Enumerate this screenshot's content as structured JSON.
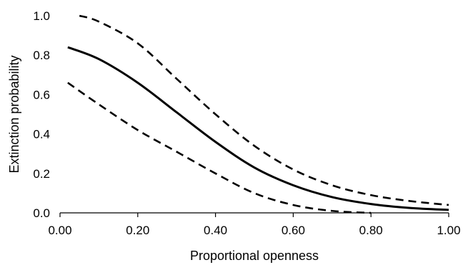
{
  "chart_data": {
    "type": "line",
    "title": "",
    "xlabel": "Proportional openness",
    "ylabel": "Extinction probability",
    "xlim": [
      0,
      1
    ],
    "ylim": [
      0,
      1
    ],
    "x_ticks": [
      "0.00",
      "0.20",
      "0.40",
      "0.60",
      "0.80",
      "1.00"
    ],
    "y_ticks": [
      "0.0",
      "0.2",
      "0.4",
      "0.6",
      "0.8",
      "1.0"
    ],
    "grid": false,
    "legend": "none",
    "series": [
      {
        "style": "solid",
        "color": "#000000",
        "x": [
          0.02,
          0.1,
          0.2,
          0.3,
          0.4,
          0.5,
          0.6,
          0.7,
          0.8,
          0.9,
          1.0
        ],
        "y": [
          0.84,
          0.78,
          0.66,
          0.51,
          0.36,
          0.23,
          0.14,
          0.08,
          0.045,
          0.025,
          0.015
        ]
      },
      {
        "style": "dashed",
        "color": "#000000",
        "x": [
          0.05,
          0.1,
          0.2,
          0.3,
          0.4,
          0.5,
          0.6,
          0.7,
          0.8,
          0.9,
          1.0
        ],
        "y": [
          1.0,
          0.97,
          0.86,
          0.68,
          0.5,
          0.34,
          0.22,
          0.14,
          0.09,
          0.06,
          0.04
        ]
      },
      {
        "style": "dashed",
        "color": "#000000",
        "x": [
          0.02,
          0.1,
          0.2,
          0.3,
          0.4,
          0.5,
          0.6,
          0.7,
          0.8
        ],
        "y": [
          0.66,
          0.55,
          0.42,
          0.31,
          0.2,
          0.1,
          0.04,
          0.01,
          0.0
        ]
      }
    ]
  }
}
